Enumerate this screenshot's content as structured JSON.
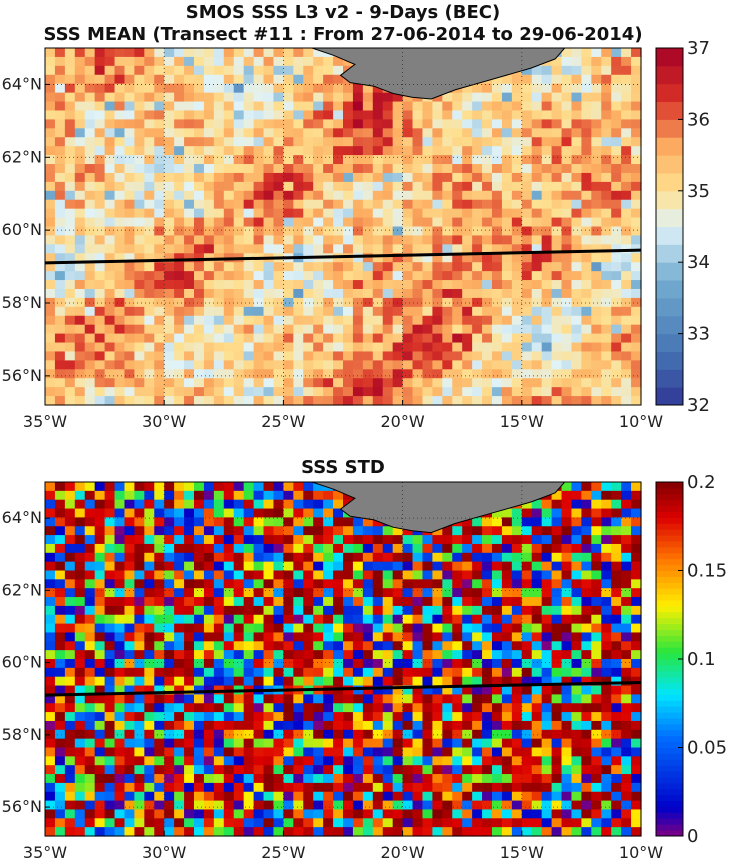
{
  "chart_data": [
    {
      "type": "heatmap",
      "title": "SMOS SSS L3 v2 - 9-Days (BEC)",
      "subtitle": "SSS MEAN (Transect #11 : From 27-06-2014 to 29-06-2014)",
      "xlim": [
        -35,
        -10
      ],
      "ylim": [
        55.2,
        65
      ],
      "x_ticks": [
        "35°W",
        "30°W",
        "25°W",
        "20°W",
        "15°W",
        "10°W"
      ],
      "x_tick_values": [
        -35,
        -30,
        -25,
        -20,
        -15,
        -10
      ],
      "y_ticks": [
        "56°N",
        "58°N",
        "60°N",
        "62°N",
        "64°N"
      ],
      "y_tick_values": [
        56,
        58,
        60,
        62,
        64
      ],
      "colorbar": {
        "min": 32,
        "max": 37,
        "ticks": [
          "32",
          "33",
          "34",
          "35",
          "36",
          "37"
        ],
        "colormap": "red-blue diverging"
      },
      "grid": true,
      "transect_line": [
        [
          -35,
          59.1
        ],
        [
          -10,
          59.45
        ]
      ],
      "land": "Iceland (grey) at top center"
    },
    {
      "type": "heatmap",
      "title": "SSS STD",
      "xlim": [
        -35,
        -10
      ],
      "ylim": [
        55.2,
        65
      ],
      "x_ticks": [
        "35°W",
        "30°W",
        "25°W",
        "20°W",
        "15°W",
        "10°W"
      ],
      "x_tick_values": [
        -35,
        -30,
        -25,
        -20,
        -15,
        -10
      ],
      "y_ticks": [
        "56°N",
        "58°N",
        "60°N",
        "62°N",
        "64°N"
      ],
      "y_tick_values": [
        56,
        58,
        60,
        62,
        64
      ],
      "colorbar": {
        "min": 0,
        "max": 0.2,
        "ticks": [
          "0",
          "0.05",
          "0.1",
          "0.15",
          "0.2"
        ],
        "colormap": "jet"
      },
      "grid": true,
      "transect_line": [
        [
          -35,
          59.1
        ],
        [
          -10,
          59.45
        ]
      ],
      "land": "Iceland (grey) at top center"
    }
  ]
}
